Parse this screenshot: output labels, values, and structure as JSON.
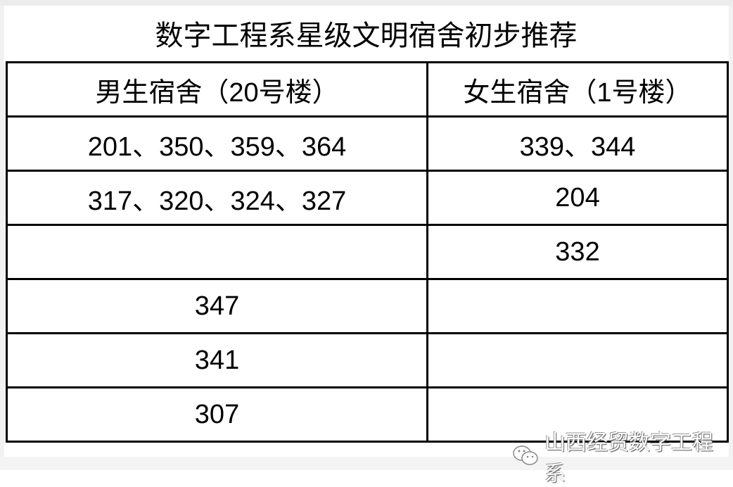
{
  "title": "数字工程系星级文明宿舍初步推荐",
  "table": {
    "headers": [
      "男生宿舍（20号楼）",
      "女生宿舍（1号楼）"
    ],
    "rows": [
      [
        "201、350、359、364",
        "339、344"
      ],
      [
        "317、320、324、327",
        "204"
      ],
      [
        "",
        "332"
      ],
      [
        "347",
        ""
      ],
      [
        "341",
        ""
      ],
      [
        "307",
        ""
      ]
    ]
  },
  "watermark": {
    "icon": "wechat-icon",
    "text": "山西经贸数字工程系"
  }
}
